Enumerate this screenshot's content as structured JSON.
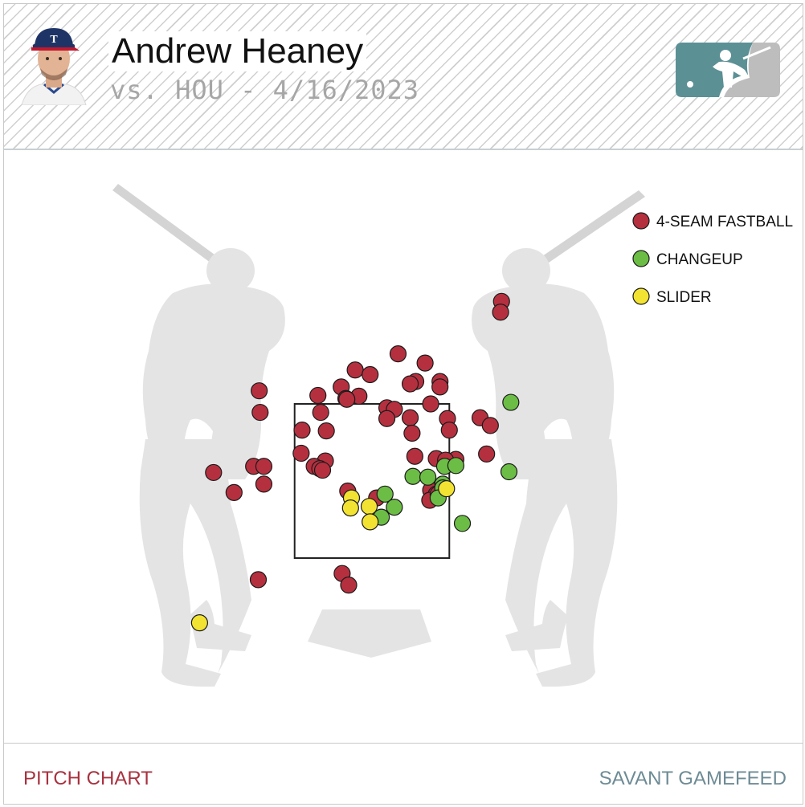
{
  "header": {
    "player_name": "Andrew Heaney",
    "subtitle": "vs. HOU - 4/16/2023",
    "avatar_icon": "player-headshot-icon",
    "logo_icon": "mlb-logo-icon"
  },
  "footer": {
    "left_link": "PITCH CHART",
    "right_link": "SAVANT GAMEFEED"
  },
  "colors": {
    "four_seam": "#b5303f",
    "changeup": "#6cbd45",
    "slider": "#f2e332",
    "silhouette": "#e4e4e4",
    "link_red": "#a8313f",
    "link_teal": "#6d8b95",
    "logo_teal": "#5b9095"
  },
  "chart_data": {
    "type": "scatter",
    "title": "",
    "xlabel": "",
    "ylabel": "",
    "xlim": [
      -2.0,
      2.0
    ],
    "ylim": [
      0.0,
      5.0
    ],
    "strike_zone": {
      "left": -0.83,
      "right": 0.83,
      "bottom": 1.5,
      "top": 3.5
    },
    "legend": [
      "4-SEAM FASTBALL",
      "CHANGEUP",
      "SLIDER"
    ],
    "series": [
      {
        "name": "4-SEAM FASTBALL",
        "color": "#b5303f",
        "points": [
          [
            1.39,
            4.83
          ],
          [
            1.38,
            4.69
          ],
          [
            0.28,
            4.15
          ],
          [
            0.57,
            4.03
          ],
          [
            -0.18,
            3.94
          ],
          [
            -0.02,
            3.88
          ],
          [
            0.47,
            3.79
          ],
          [
            0.41,
            3.76
          ],
          [
            0.73,
            3.79
          ],
          [
            0.73,
            3.72
          ],
          [
            -0.33,
            3.72
          ],
          [
            -1.21,
            3.67
          ],
          [
            -0.58,
            3.61
          ],
          [
            -0.28,
            3.57
          ],
          [
            -0.14,
            3.6
          ],
          [
            -0.27,
            3.56
          ],
          [
            0.16,
            3.45
          ],
          [
            0.24,
            3.43
          ],
          [
            0.63,
            3.5
          ],
          [
            -1.2,
            3.39
          ],
          [
            -0.55,
            3.39
          ],
          [
            0.16,
            3.31
          ],
          [
            0.41,
            3.32
          ],
          [
            0.81,
            3.31
          ],
          [
            1.16,
            3.32
          ],
          [
            1.27,
            3.22
          ],
          [
            -0.75,
            3.16
          ],
          [
            -0.49,
            3.15
          ],
          [
            0.83,
            3.16
          ],
          [
            0.43,
            3.12
          ],
          [
            -0.76,
            2.86
          ],
          [
            0.46,
            2.82
          ],
          [
            0.69,
            2.79
          ],
          [
            0.9,
            2.78
          ],
          [
            0.79,
            2.77
          ],
          [
            1.23,
            2.85
          ],
          [
            -0.5,
            2.76
          ],
          [
            -0.62,
            2.69
          ],
          [
            -1.27,
            2.69
          ],
          [
            -1.16,
            2.69
          ],
          [
            -0.56,
            2.66
          ],
          [
            -0.53,
            2.64
          ],
          [
            -1.7,
            2.61
          ],
          [
            -1.16,
            2.46
          ],
          [
            -1.48,
            2.35
          ],
          [
            -0.26,
            2.37
          ],
          [
            0.05,
            2.28
          ],
          [
            0.63,
            2.38
          ],
          [
            0.69,
            2.33
          ],
          [
            0.62,
            2.25
          ],
          [
            0.71,
            2.33
          ],
          [
            -0.32,
            1.3
          ],
          [
            -1.22,
            1.22
          ],
          [
            -0.25,
            1.15
          ]
        ]
      },
      {
        "name": "CHANGEUP",
        "color": "#6cbd45",
        "points": [
          [
            1.49,
            3.52
          ],
          [
            0.78,
            2.69
          ],
          [
            1.47,
            2.62
          ],
          [
            0.44,
            2.56
          ],
          [
            0.6,
            2.55
          ],
          [
            0.76,
            2.46
          ],
          [
            0.76,
            2.41
          ],
          [
            0.14,
            2.33
          ],
          [
            0.71,
            2.28
          ],
          [
            0.24,
            2.16
          ],
          [
            0.1,
            2.03
          ],
          [
            0.97,
            1.95
          ],
          [
            0.9,
            2.7
          ]
        ]
      },
      {
        "name": "SLIDER",
        "color": "#f2e332",
        "points": [
          [
            -0.22,
            2.28
          ],
          [
            -0.23,
            2.15
          ],
          [
            -0.03,
            2.17
          ],
          [
            -0.02,
            1.97
          ],
          [
            -1.85,
            0.66
          ],
          [
            0.8,
            2.4
          ]
        ]
      }
    ]
  }
}
